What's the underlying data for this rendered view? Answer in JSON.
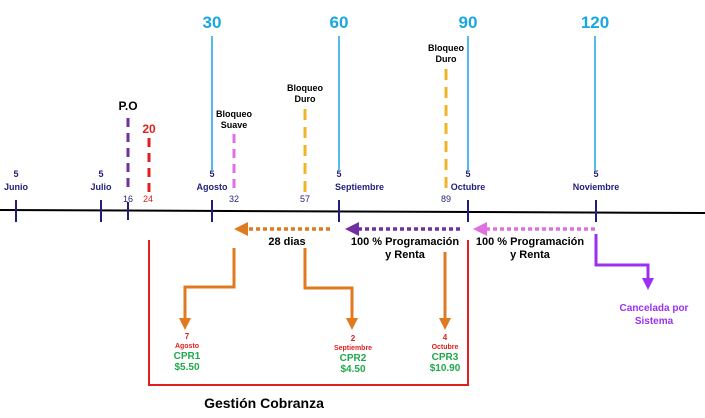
{
  "colors": {
    "navy": "#1f1f7a",
    "cyan": "#1aa7e0",
    "purple": "#7030a0",
    "red": "#e0201c",
    "pink": "#e070e0",
    "gold": "#f0b429",
    "orange": "#e07a1f",
    "green": "#1faa4a",
    "violet": "#9b30f0",
    "black": "#000000"
  },
  "milestones": [
    {
      "day": "30"
    },
    {
      "day": "60"
    },
    {
      "day": "90"
    },
    {
      "day": "120"
    }
  ],
  "dates": [
    {
      "day": "5",
      "month": "Junio"
    },
    {
      "day": "5",
      "month": "Julio"
    },
    {
      "day": "5",
      "month": "Agosto"
    },
    {
      "day": "5",
      "month": "Septiembre"
    },
    {
      "day": "5",
      "month": "Octubre"
    },
    {
      "day": "5",
      "month": "Noviembre"
    }
  ],
  "ticks": {
    "po_label": "P.O",
    "po_day": "16",
    "red_top": "20",
    "red_day": "24",
    "soft_block_day": "32",
    "hard_block1_day": "57",
    "hard_block2_day": "89"
  },
  "blocks": {
    "soft": [
      "Bloqueo",
      "Suave"
    ],
    "hard1": [
      "Bloqueo",
      "Duro"
    ],
    "hard2": [
      "Bloqueo",
      "Duro"
    ]
  },
  "arrows": {
    "days28": "28 dias",
    "prog1": [
      "100 % Programación",
      "y Renta"
    ],
    "prog2": [
      "100 % Programación",
      "y Renta"
    ]
  },
  "cprs": [
    {
      "day": "7",
      "month": "Agosto",
      "name": "CPR1",
      "amount": "$5.50"
    },
    {
      "day": "2",
      "month": "Septiembre",
      "name": "CPR2",
      "amount": "$4.50"
    },
    {
      "day": "4",
      "month": "Octubre",
      "name": "CPR3",
      "amount": "$10.90"
    }
  ],
  "cancel": [
    "Cancelada por",
    "Sistema"
  ],
  "footer": "Gestión Cobranza"
}
